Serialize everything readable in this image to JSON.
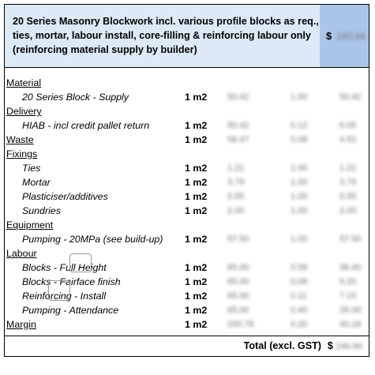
{
  "header": {
    "description": "20 Series Masonry Blockwork incl. various profile blocks as req., ties, mortar, labour install, core-filling & reinforcing labour only (reinforcing material supply by builder)",
    "currency": "$",
    "price": "240.94"
  },
  "rows": [
    {
      "type": "cat",
      "label": "Material"
    },
    {
      "type": "item",
      "label": "20 Series Block - Supply",
      "qty": "1 m2",
      "c1": "50.42",
      "c2": "1.00",
      "c3": "50.42"
    },
    {
      "type": "cat",
      "label": "Delivery"
    },
    {
      "type": "item",
      "label": "HIAB - incl credit pallet return",
      "qty": "1 m2",
      "c1": "50.42",
      "c2": "0.12",
      "c3": "6.05"
    },
    {
      "type": "catrow",
      "label": "Waste",
      "qty": "1 m2",
      "c1": "56.47",
      "c2": "0.08",
      "c3": "4.52"
    },
    {
      "type": "cat",
      "label": "Fixings"
    },
    {
      "type": "item",
      "label": "Ties",
      "qty": "1 m2",
      "c1": "1.21",
      "c2": "1.00",
      "c3": "1.21"
    },
    {
      "type": "item",
      "label": "Mortar",
      "qty": "1 m2",
      "c1": "3.79",
      "c2": "1.00",
      "c3": "3.79"
    },
    {
      "type": "item",
      "label": "Plasticiser/additives",
      "qty": "1 m2",
      "c1": "0.55",
      "c2": "1.00",
      "c3": "0.55"
    },
    {
      "type": "item",
      "label": "Sundries",
      "qty": "1 m2",
      "c1": "2.00",
      "c2": "1.00",
      "c3": "2.00"
    },
    {
      "type": "cat",
      "label": "Equipment"
    },
    {
      "type": "item",
      "label": "Pumping - 20MPa (see build-up)",
      "qty": "1 m2",
      "c1": "57.50",
      "c2": "1.00",
      "c3": "57.50"
    },
    {
      "type": "cat",
      "label": "Labour"
    },
    {
      "type": "item",
      "label": "Blocks - Full Height",
      "qty": "1 m2",
      "c1": "65.00",
      "c2": "0.56",
      "c3": "36.40"
    },
    {
      "type": "item",
      "label": "Blocks - Fairface finish",
      "qty": "1 m2",
      "c1": "65.00",
      "c2": "0.08",
      "c3": "5.20"
    },
    {
      "type": "item",
      "label": "Reinforcing - Install",
      "qty": "1 m2",
      "c1": "65.00",
      "c2": "0.11",
      "c3": "7.15"
    },
    {
      "type": "item",
      "label": "Pumping - Attendance",
      "qty": "1 m2",
      "c1": "65.00",
      "c2": "0.40",
      "c3": "26.00"
    },
    {
      "type": "catrow",
      "label": "Margin",
      "qty": "1 m2",
      "c1": "200.78",
      "c2": "0.20",
      "c3": "40.16"
    }
  ],
  "footer": {
    "label": "Total (excl. GST)",
    "currency": "$",
    "total": "240.94"
  }
}
